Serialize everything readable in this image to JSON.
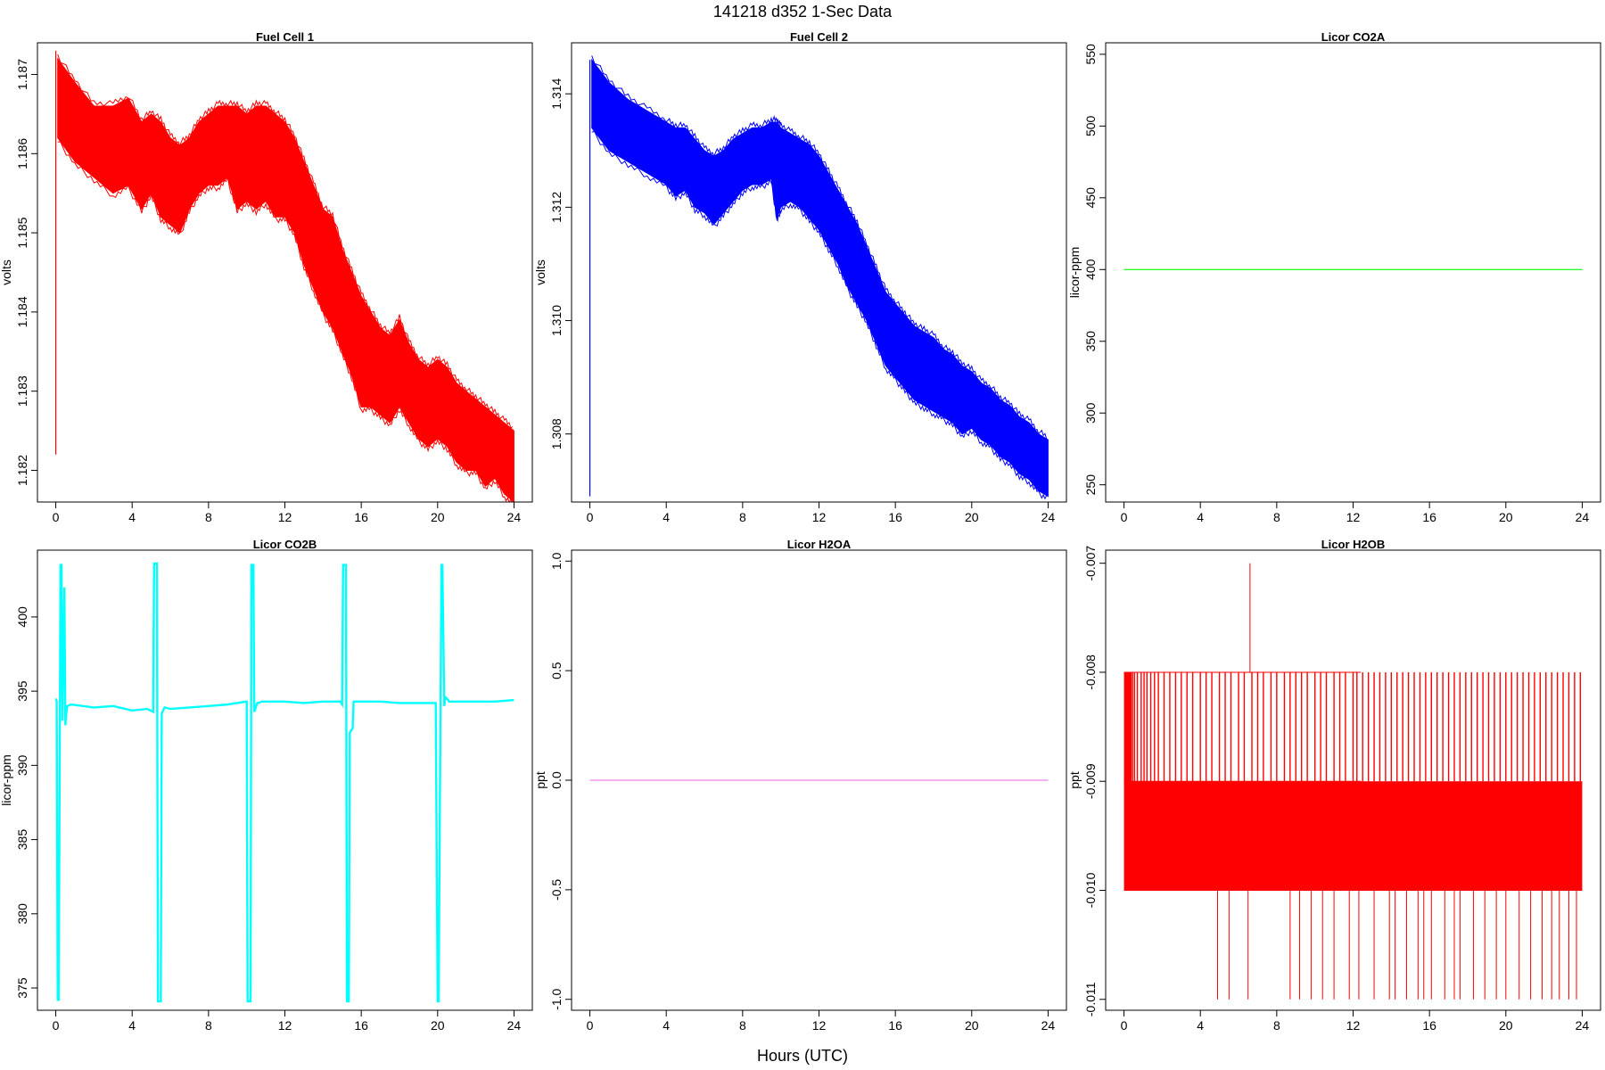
{
  "figure": {
    "title": "141218   d352   1-Sec Data",
    "xlabel": "Hours (UTC)"
  },
  "chart_data": [
    {
      "type": "line",
      "title": "Fuel Cell 1",
      "ylabel": "volts",
      "color": "#ff0000",
      "xlim": [
        0,
        24
      ],
      "ylim": [
        1.1816,
        1.1874
      ],
      "xticks": [
        0,
        4,
        8,
        12,
        16,
        20,
        24
      ],
      "yticks": [
        1.182,
        1.183,
        1.184,
        1.185,
        1.186,
        1.187
      ],
      "ytick_labels": [
        "1.182",
        "1.183",
        "1.184",
        "1.185",
        "1.186",
        "1.187"
      ],
      "render": "band",
      "spikes": [
        {
          "x": 0.0,
          "y0": 1.1822,
          "y1": 1.1873
        }
      ],
      "x": [
        0.1,
        1,
        2,
        3,
        3.8,
        4.5,
        5,
        5.5,
        6,
        6.5,
        7,
        7.5,
        8,
        8.5,
        9,
        9.5,
        10,
        10.5,
        11,
        11.5,
        12,
        12.5,
        13,
        13.5,
        14,
        14.5,
        15,
        15.5,
        16,
        16.5,
        17,
        17.5,
        18,
        18.5,
        19,
        19.5,
        20,
        20.5,
        21,
        21.5,
        22,
        22.5,
        23,
        23.5,
        24
      ],
      "y_min": [
        1.1862,
        1.1859,
        1.1857,
        1.1855,
        1.1856,
        1.1853,
        1.1855,
        1.1852,
        1.1851,
        1.185,
        1.1853,
        1.1855,
        1.1856,
        1.1856,
        1.1857,
        1.1853,
        1.1854,
        1.1853,
        1.1854,
        1.1852,
        1.1852,
        1.185,
        1.1846,
        1.1843,
        1.184,
        1.1838,
        1.1835,
        1.1832,
        1.1828,
        1.1828,
        1.1827,
        1.1826,
        1.1828,
        1.1826,
        1.1824,
        1.1823,
        1.1824,
        1.1823,
        1.1821,
        1.182,
        1.182,
        1.1818,
        1.1819,
        1.1817,
        1.1816
      ],
      "y_max": [
        1.1872,
        1.1869,
        1.1866,
        1.1866,
        1.1867,
        1.1864,
        1.1865,
        1.1864,
        1.1862,
        1.1861,
        1.1862,
        1.1864,
        1.1865,
        1.1866,
        1.1866,
        1.1866,
        1.1865,
        1.1866,
        1.1866,
        1.1865,
        1.1864,
        1.1862,
        1.1859,
        1.1856,
        1.1853,
        1.1852,
        1.1848,
        1.1845,
        1.1842,
        1.184,
        1.1838,
        1.1837,
        1.1839,
        1.1836,
        1.1834,
        1.1833,
        1.1834,
        1.1833,
        1.1831,
        1.183,
        1.1829,
        1.1828,
        1.1827,
        1.1826,
        1.1825
      ]
    },
    {
      "type": "line",
      "title": "Fuel Cell 2",
      "ylabel": "volts",
      "color": "#0000ff",
      "xlim": [
        0,
        24
      ],
      "ylim": [
        1.3068,
        1.3149
      ],
      "xticks": [
        0,
        4,
        8,
        12,
        16,
        20,
        24
      ],
      "yticks": [
        1.308,
        1.31,
        1.312,
        1.314
      ],
      "ytick_labels": [
        "1.308",
        "1.310",
        "1.312",
        "1.314"
      ],
      "render": "band",
      "spikes": [
        {
          "x": 0.0,
          "y0": 1.3069,
          "y1": 1.3146
        }
      ],
      "x": [
        0.1,
        1,
        2,
        3,
        4,
        4.5,
        5,
        5.5,
        6,
        6.5,
        7,
        7.5,
        8,
        8.5,
        9,
        9.5,
        9.8,
        10,
        10.5,
        11,
        11.5,
        12,
        12.5,
        13,
        13.5,
        14,
        14.5,
        15,
        15.5,
        16,
        16.5,
        17,
        17.5,
        18,
        18.5,
        19,
        19.5,
        20,
        20.5,
        21,
        21.5,
        22,
        22.5,
        23,
        23.5,
        24
      ],
      "y_min": [
        1.3134,
        1.313,
        1.3128,
        1.3126,
        1.3124,
        1.3122,
        1.3123,
        1.312,
        1.3119,
        1.3117,
        1.3119,
        1.3121,
        1.3123,
        1.3124,
        1.3124,
        1.3125,
        1.3118,
        1.312,
        1.3121,
        1.312,
        1.3118,
        1.3116,
        1.3113,
        1.311,
        1.3106,
        1.3103,
        1.31,
        1.3096,
        1.3092,
        1.309,
        1.3088,
        1.3086,
        1.3085,
        1.3084,
        1.3083,
        1.3082,
        1.308,
        1.3081,
        1.3079,
        1.3078,
        1.3076,
        1.3075,
        1.3073,
        1.3072,
        1.307,
        1.3069
      ],
      "y_max": [
        1.3146,
        1.3142,
        1.3139,
        1.3137,
        1.3135,
        1.3134,
        1.3134,
        1.3132,
        1.313,
        1.3129,
        1.313,
        1.3132,
        1.3133,
        1.3134,
        1.3134,
        1.3135,
        1.3135,
        1.3134,
        1.3133,
        1.3132,
        1.3131,
        1.3129,
        1.3126,
        1.3123,
        1.312,
        1.3117,
        1.3113,
        1.3109,
        1.3105,
        1.3103,
        1.3101,
        1.3099,
        1.3098,
        1.3097,
        1.3095,
        1.3094,
        1.3092,
        1.3091,
        1.3089,
        1.3088,
        1.3086,
        1.3085,
        1.3083,
        1.3082,
        1.308,
        1.3079
      ]
    },
    {
      "type": "line",
      "title": "Licor CO2A",
      "ylabel": "licor-ppm",
      "color": "#00ff00",
      "xlim": [
        0,
        24
      ],
      "ylim": [
        238,
        558
      ],
      "xticks": [
        0,
        4,
        8,
        12,
        16,
        20,
        24
      ],
      "yticks": [
        250,
        300,
        350,
        400,
        450,
        500,
        550
      ],
      "ytick_labels": [
        "250",
        "300",
        "350",
        "400",
        "450",
        "500",
        "550"
      ],
      "render": "line",
      "x": [
        0,
        24
      ],
      "y": [
        400,
        400
      ]
    },
    {
      "type": "line",
      "title": "Licor CO2B",
      "ylabel": "licor-ppm",
      "color": "#00ffff",
      "xlim": [
        0,
        24
      ],
      "ylim": [
        373.5,
        404.5
      ],
      "xticks": [
        0,
        4,
        8,
        12,
        16,
        20,
        24
      ],
      "yticks": [
        375,
        380,
        385,
        390,
        395,
        400
      ],
      "ytick_labels": [
        "375",
        "380",
        "385",
        "390",
        "395",
        "400"
      ],
      "render": "line",
      "x": [
        0,
        0.05,
        0.1,
        0.15,
        0.25,
        0.3,
        0.35,
        0.45,
        0.5,
        0.55,
        0.6,
        0.8,
        2,
        3,
        4,
        4.8,
        5.1,
        5.15,
        5.3,
        5.35,
        5.5,
        5.55,
        5.7,
        6,
        7,
        8,
        9,
        10.0,
        10.05,
        10.2,
        10.25,
        10.35,
        10.4,
        10.55,
        10.6,
        10.8,
        12,
        13,
        14,
        14.9,
        15.0,
        15.05,
        15.2,
        15.25,
        15.35,
        15.4,
        15.55,
        15.6,
        15.8,
        17,
        18,
        19,
        19.9,
        20.0,
        20.05,
        20.2,
        20.25,
        20.35,
        20.4,
        20.55,
        20.6,
        20.8,
        22,
        23,
        24
      ],
      "y": [
        394.5,
        394.3,
        374.2,
        374.2,
        403.5,
        403.5,
        393.0,
        402.0,
        392.7,
        393.5,
        394.0,
        394.1,
        393.9,
        394.0,
        393.7,
        393.8,
        393.6,
        403.6,
        403.6,
        374.1,
        374.1,
        393.5,
        393.9,
        393.8,
        393.9,
        394.0,
        394.1,
        394.3,
        374.1,
        374.1,
        403.5,
        403.5,
        393.6,
        394.2,
        394.2,
        394.3,
        394.3,
        394.2,
        394.3,
        394.3,
        394.1,
        403.5,
        403.5,
        374.1,
        374.1,
        392.2,
        392.5,
        394.3,
        394.3,
        394.3,
        394.2,
        394.2,
        394.2,
        374.1,
        374.1,
        403.5,
        403.5,
        394.0,
        394.6,
        394.4,
        394.3,
        394.3,
        394.3,
        394.3,
        394.4
      ]
    },
    {
      "type": "line",
      "title": "Licor H2OA",
      "ylabel": "ppt",
      "color": "#ee82ee",
      "xlim": [
        0,
        24
      ],
      "ylim": [
        -1.05,
        1.05
      ],
      "xticks": [
        0,
        4,
        8,
        12,
        16,
        20,
        24
      ],
      "yticks": [
        -1.0,
        -0.5,
        0.0,
        0.5,
        1.0
      ],
      "ytick_labels": [
        "-1.0",
        "-0.5",
        "0.0",
        "0.5",
        "1.0"
      ],
      "render": "line",
      "x": [
        0,
        24
      ],
      "y": [
        0,
        0
      ]
    },
    {
      "type": "line",
      "title": "Licor H2OB",
      "ylabel": "ppt",
      "color": "#ff0000",
      "xlim": [
        0,
        24
      ],
      "ylim": [
        -0.0111,
        -0.00688
      ],
      "xticks": [
        0,
        4,
        8,
        12,
        16,
        20,
        24
      ],
      "yticks": [
        -0.011,
        -0.01,
        -0.009,
        -0.008,
        -0.007
      ],
      "ytick_labels": [
        "-0.011",
        "-0.010",
        "-0.009",
        "-0.008",
        "-0.007"
      ],
      "render": "quantized",
      "band_segments": [
        {
          "x0": 0.0,
          "x1": 24.0,
          "y0": -0.01,
          "y1": -0.009
        },
        {
          "x0": 0.0,
          "x1": 12.4,
          "y0": -0.009,
          "y1": -0.008
        }
      ],
      "upper_band_dense_end": 0.4,
      "upper_spike_x": [
        0.45,
        0.55,
        0.7,
        0.9,
        1.05,
        1.2,
        1.4,
        1.6,
        1.8,
        2.1,
        2.4,
        2.7,
        3.0,
        3.3,
        3.6,
        4.0,
        4.3,
        4.6,
        5.0,
        5.3,
        5.6,
        6.0,
        6.3,
        6.7,
        7.0,
        7.3,
        7.7,
        8.0,
        8.4,
        8.7,
        9.0,
        9.3,
        9.6,
        10.0,
        10.3,
        10.6,
        11.0,
        11.3,
        11.6,
        12.0,
        12.2,
        12.5,
        12.8,
        13.1,
        13.4,
        13.7,
        14.0,
        14.3,
        14.6,
        14.9,
        15.2,
        15.5,
        15.8,
        16.1,
        16.4,
        16.7,
        17.0,
        17.3,
        17.6,
        17.9,
        18.2,
        18.5,
        18.8,
        19.1,
        19.4,
        19.7,
        20.0,
        20.3,
        20.6,
        20.9,
        21.2,
        21.5,
        21.8,
        22.1,
        22.4,
        22.7,
        23.0,
        23.3,
        23.6,
        23.9
      ],
      "lower_spike_x": [
        4.9,
        5.5,
        6.5,
        8.7,
        9.2,
        9.8,
        10.4,
        11.0,
        11.8,
        12.3,
        13.1,
        13.9,
        14.2,
        14.8,
        15.4,
        15.7,
        16.1,
        16.8,
        17.3,
        17.6,
        18.3,
        18.9,
        19.5,
        20.0,
        20.7,
        21.3,
        21.9,
        22.4,
        22.8,
        23.3,
        23.7
      ],
      "high_spike": {
        "x": 6.6,
        "y": -0.007
      }
    }
  ]
}
